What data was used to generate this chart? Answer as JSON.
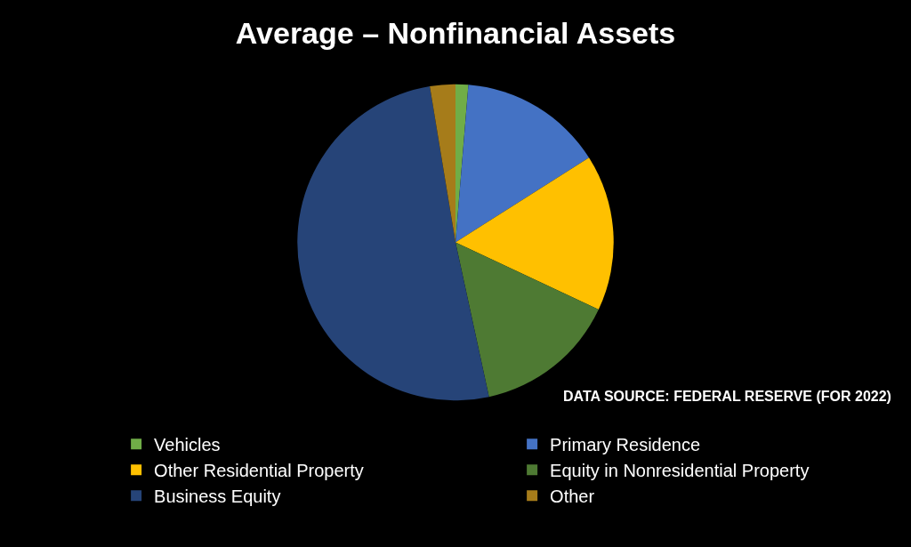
{
  "chart_data": {
    "type": "pie",
    "title": "Average – Nonfinancial Assets",
    "categories": [
      "Vehicles",
      "Primary Residence",
      "Other Residential Property",
      "Equity in Nonresidential Property",
      "Business Equity",
      "Other"
    ],
    "values": [
      1.3,
      14.7,
      16.0,
      14.6,
      50.8,
      2.6
    ],
    "colors": [
      "#70ad47",
      "#4472c4",
      "#ffc000",
      "#4e7a33",
      "#264478",
      "#a67c1a"
    ],
    "annotations": [
      "DATA SOURCE: FEDERAL RESERVE (FOR 2022)"
    ],
    "legend": "bottom"
  }
}
